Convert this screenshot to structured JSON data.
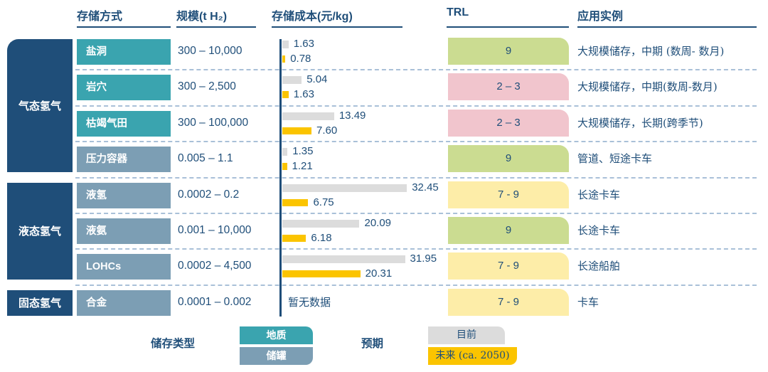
{
  "header": {
    "col_method": "存储方式",
    "col_scale": "规模(t H₂)",
    "col_cost": "存储成本(元/kg)",
    "col_trl": "TRL",
    "col_app": "应用实例"
  },
  "categories": [
    {
      "label": "气态氢气",
      "row_span": 4
    },
    {
      "label": "液态氢气",
      "row_span": 3
    },
    {
      "label": "固态氢气",
      "row_span": 1
    }
  ],
  "rows": [
    {
      "method": "盐洞",
      "type": "geological",
      "scale": "300 – 10,000",
      "cost_current": "1.63",
      "cost_future": "0.78",
      "trl": "9",
      "trl_color": "green",
      "application": "大规模储存，中期 (数周- 数月)"
    },
    {
      "method": "岩穴",
      "type": "geological",
      "scale": "300 – 2,500",
      "cost_current": "5.04",
      "cost_future": "1.63",
      "trl": "2 – 3",
      "trl_color": "pink",
      "application": "大规模储存，中期(数周-数月)"
    },
    {
      "method": "枯竭气田",
      "type": "geological",
      "scale": "300 – 100,000",
      "cost_current": "13.49",
      "cost_future": "7.60",
      "trl": "2 – 3",
      "trl_color": "pink",
      "application": "大规模储存，长期(跨季节)"
    },
    {
      "method": "压力容器",
      "type": "tank",
      "scale": "0.005 – 1.1",
      "cost_current": "1.35",
      "cost_future": "1.21",
      "trl": "9",
      "trl_color": "green",
      "application": "管道、短途卡车"
    },
    {
      "method": "液氢",
      "type": "tank",
      "scale": "0.0002 – 0.2",
      "cost_current": "32.45",
      "cost_future": "6.75",
      "trl": "7 - 9",
      "trl_color": "yellow",
      "application": "长途卡车"
    },
    {
      "method": "液氨",
      "type": "tank",
      "scale": "0.001 – 10,000",
      "cost_current": "20.09",
      "cost_future": "6.18",
      "trl": "9",
      "trl_color": "green",
      "application": "长途卡车"
    },
    {
      "method": "LOHCs",
      "type": "tank",
      "scale": "0.0002 – 4,500",
      "cost_current": "31.95",
      "cost_future": "20.31",
      "trl": "7 - 9",
      "trl_color": "yellow",
      "application": "长途船舶"
    },
    {
      "method": "合金",
      "type": "tank",
      "scale": "0.0001 – 0.002",
      "cost_current": null,
      "cost_future": null,
      "no_data": "暂无数据",
      "trl": "7 - 9",
      "trl_color": "yellow",
      "application": "卡车"
    }
  ],
  "legend": {
    "storage_type_label": "储存类型",
    "geological": "地质",
    "tank": "储罐",
    "expectation_label": "预期",
    "current": "目前",
    "future": "未来 (ca. 2050)"
  },
  "colors": {
    "navy": "#1F4E79",
    "teal_geological": "#3AA4AF",
    "bluegray_tank": "#7C9EB4",
    "bar_current_gray": "#DCDCDC",
    "bar_future_gold": "#FBC400",
    "trl_green": "#CBDC91",
    "trl_pink": "#F1C5CD",
    "trl_yellow": "#FDEDA8",
    "dashed_separator": "#A9C0D8",
    "background": "#FFFFFF"
  },
  "chart_data": {
    "type": "bar",
    "orientation": "horizontal",
    "value_axis_label": "存储成本(元/kg)",
    "xlim": [
      0,
      33
    ],
    "grid": false,
    "legend_position": "bottom",
    "categories": [
      "盐洞",
      "岩穴",
      "枯竭气田",
      "压力容器",
      "液氢",
      "液氨",
      "LOHCs",
      "合金"
    ],
    "series": [
      {
        "name": "目前",
        "values": [
          1.63,
          5.04,
          13.49,
          1.35,
          32.45,
          20.09,
          31.95,
          null
        ]
      },
      {
        "name": "未来 (ca. 2050)",
        "values": [
          0.78,
          1.63,
          7.6,
          1.21,
          6.75,
          6.18,
          20.31,
          null
        ]
      }
    ],
    "table_columns": [
      "存储方式",
      "规模(t H₂)",
      "存储成本(元/kg)",
      "TRL",
      "应用实例"
    ],
    "table_rows": [
      [
        "盐洞",
        "300 – 10,000",
        "1.63 / 0.78",
        "9",
        "大规模储存，中期 (数周- 数月)"
      ],
      [
        "岩穴",
        "300 – 2,500",
        "5.04 / 1.63",
        "2 – 3",
        "大规模储存，中期(数周-数月)"
      ],
      [
        "枯竭气田",
        "300 – 100,000",
        "13.49 / 7.60",
        "2 – 3",
        "大规模储存，长期(跨季节)"
      ],
      [
        "压力容器",
        "0.005 – 1.1",
        "1.35 / 1.21",
        "9",
        "管道、短途卡车"
      ],
      [
        "液氢",
        "0.0002 – 0.2",
        "32.45 / 6.75",
        "7 - 9",
        "长途卡车"
      ],
      [
        "液氨",
        "0.001 – 10,000",
        "20.09 / 6.18",
        "9",
        "长途卡车"
      ],
      [
        "LOHCs",
        "0.0002 – 4,500",
        "31.95 / 20.31",
        "7 - 9",
        "长途船舶"
      ],
      [
        "合金",
        "0.0001 – 0.002",
        "暂无数据",
        "7 - 9",
        "卡车"
      ]
    ],
    "row_groups": [
      {
        "label": "气态氢气",
        "rows": [
          "盐洞",
          "岩穴",
          "枯竭气田",
          "压力容器"
        ]
      },
      {
        "label": "液态氢气",
        "rows": [
          "液氢",
          "液氨",
          "LOHCs"
        ]
      },
      {
        "label": "固态氢气",
        "rows": [
          "合金"
        ]
      }
    ]
  }
}
